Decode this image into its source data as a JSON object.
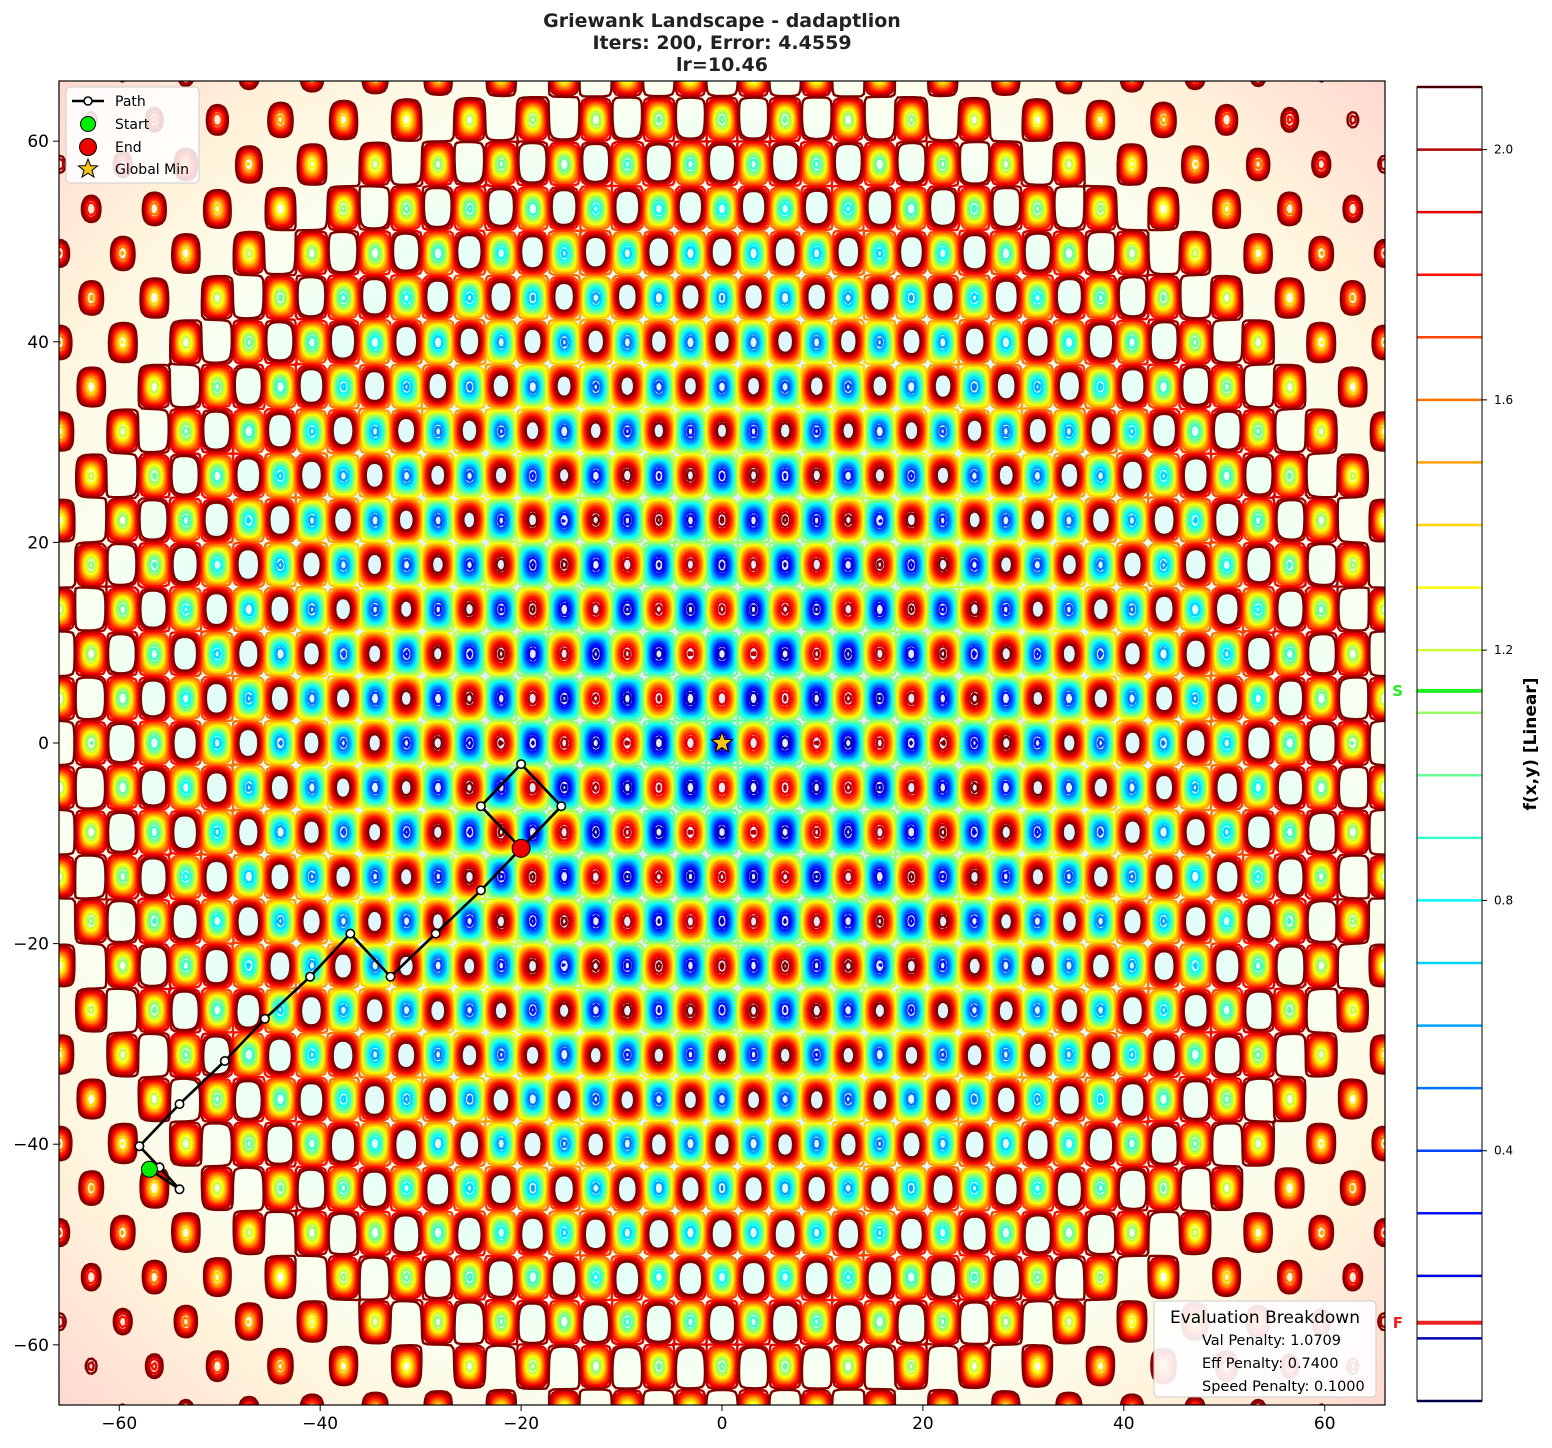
{
  "chart_data": {
    "type": "contour",
    "title_lines": [
      "Griewank Landscape - dadaptlion",
      "Iters: 200, Error: 4.4559",
      "lr=10.46"
    ],
    "xlim": [
      -66,
      66
    ],
    "ylim": [
      -66,
      66
    ],
    "x_ticks": [
      -60,
      -40,
      -20,
      0,
      20,
      40,
      60
    ],
    "y_ticks": [
      -60,
      -40,
      -20,
      0,
      20,
      40,
      60
    ],
    "x_tick_labels": [
      "−60",
      "−40",
      "−20",
      "0",
      "20",
      "40",
      "60"
    ],
    "y_tick_labels": [
      "−60",
      "−40",
      "−20",
      "0",
      "20",
      "40",
      "60"
    ],
    "contour_levels": [
      0.0,
      0.1,
      0.2,
      0.3,
      0.4,
      0.5,
      0.6,
      0.7,
      0.8,
      0.9,
      1.0,
      1.1,
      1.2,
      1.3,
      1.4,
      1.5,
      1.6,
      1.7,
      1.8,
      1.9,
      2.0,
      2.1
    ],
    "colormap": "jet",
    "colorbar": {
      "label": "f(x,y) [Linear]",
      "range": [
        0.0,
        2.1
      ],
      "ticks": [
        0.4,
        0.8,
        1.2,
        1.6,
        2.0
      ],
      "tick_labels": [
        "0.4",
        "0.8",
        "1.2",
        "1.6",
        "2.0"
      ],
      "markers": [
        {
          "label": "S",
          "value": 1.135,
          "color": "#22ee22"
        },
        {
          "label": "F",
          "value": 0.125,
          "color": "#ee2222"
        }
      ]
    },
    "path": {
      "name": "Path",
      "points": [
        [
          -57,
          -42.5
        ],
        [
          -54,
          -44.5
        ],
        [
          -56,
          -42.3
        ],
        [
          -58,
          -40.2
        ],
        [
          -54,
          -36
        ],
        [
          -49.5,
          -31.7
        ],
        [
          -45.5,
          -27.5
        ],
        [
          -41,
          -23.3
        ],
        [
          -37,
          -19
        ],
        [
          -33,
          -23.3
        ],
        [
          -28.5,
          -19
        ],
        [
          -24,
          -14.7
        ],
        [
          -20,
          -10.5
        ],
        [
          -16,
          -6.3
        ],
        [
          -20,
          -2.1
        ],
        [
          -24,
          -6.3
        ],
        [
          -20,
          -10.5
        ]
      ]
    },
    "start": {
      "name": "Start",
      "x": -57,
      "y": -42.5,
      "color": "#00ee00"
    },
    "end": {
      "name": "End",
      "x": -20,
      "y": -10.5,
      "color": "#ee0000"
    },
    "global_min": {
      "name": "Global Min",
      "x": 0,
      "y": 0,
      "color": "#f5c518"
    },
    "legend": {
      "placement": "upper-left",
      "entries": [
        "Path",
        "Start",
        "End",
        "Global Min"
      ]
    },
    "evaluation": {
      "placement": "lower-right",
      "title": "Evaluation Breakdown",
      "lines": [
        "Val Penalty: 1.0709",
        "Eff Penalty: 0.7400",
        "Speed Penalty: 0.1000"
      ]
    }
  }
}
